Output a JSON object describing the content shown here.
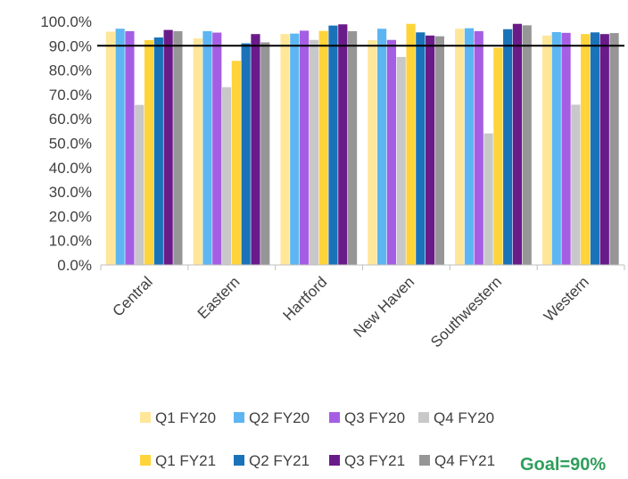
{
  "chart_data": {
    "type": "bar",
    "categories": [
      "Central",
      "Eastern",
      "Hartford",
      "New Haven",
      "Southwestern",
      "Western"
    ],
    "series": [
      {
        "name": "Q1 FY20",
        "color": "#ffe699",
        "values": [
          95.8,
          93.0,
          94.8,
          92.3,
          97.0,
          94.2
        ]
      },
      {
        "name": "Q2 FY20",
        "color": "#5db6f2",
        "values": [
          97.0,
          96.0,
          95.0,
          97.0,
          97.2,
          95.6
        ]
      },
      {
        "name": "Q3 FY20",
        "color": "#a55ee3",
        "values": [
          96.0,
          95.4,
          96.2,
          92.4,
          96.0,
          95.3
        ]
      },
      {
        "name": "Q4 FY20",
        "color": "#c8c8c8",
        "values": [
          65.7,
          73.0,
          92.4,
          85.4,
          54.0,
          65.8
        ]
      },
      {
        "name": "Q1 FY21",
        "color": "#ffd33a",
        "values": [
          92.3,
          83.8,
          96.1,
          99.0,
          89.2,
          94.8
        ]
      },
      {
        "name": "Q2 FY21",
        "color": "#1a73b8",
        "values": [
          93.4,
          91.0,
          98.3,
          95.5,
          96.8,
          95.5
        ]
      },
      {
        "name": "Q3 FY21",
        "color": "#6a1b8a",
        "values": [
          96.5,
          94.8,
          98.8,
          94.2,
          99.0,
          94.8
        ]
      },
      {
        "name": "Q4 FY21",
        "color": "#969696",
        "values": [
          96.0,
          91.4,
          96.0,
          93.9,
          98.4,
          95.2
        ]
      }
    ],
    "yticks": [
      "0.0%",
      "10.0%",
      "20.0%",
      "30.0%",
      "40.0%",
      "50.0%",
      "60.0%",
      "70.0%",
      "80.0%",
      "90.0%",
      "100.0%"
    ],
    "ylim": [
      0,
      100
    ],
    "goal_value": 90,
    "goal_label": "Goal=90%",
    "goal_label_color": "#2e9e5b",
    "grid": false,
    "legend_position": "bottom"
  }
}
